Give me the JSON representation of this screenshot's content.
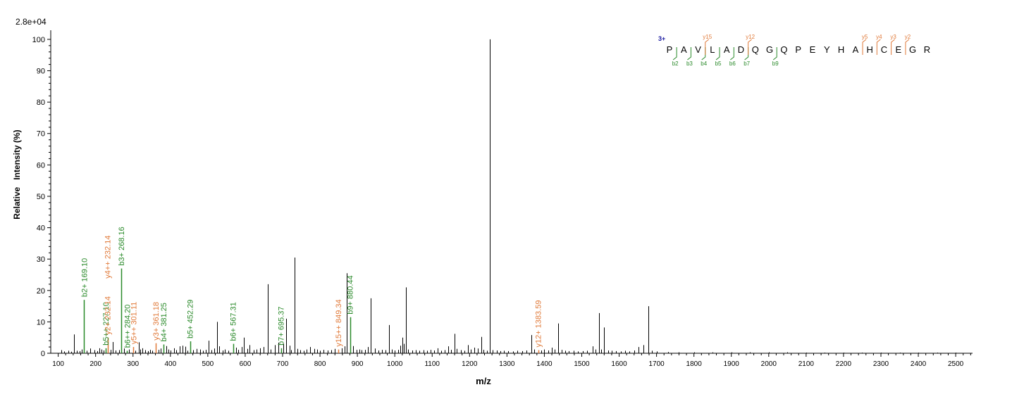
{
  "chart_data": {
    "type": "bar",
    "scale_label": "2.8e+04",
    "xlabel": "m/z",
    "ylabel": "Relative   Intensity (%)",
    "xlim": [
      80,
      2545
    ],
    "ylim": [
      0,
      102
    ],
    "x_ticks": [
      100,
      200,
      300,
      400,
      500,
      600,
      700,
      800,
      900,
      1000,
      1100,
      1200,
      1300,
      1400,
      1500,
      1600,
      1700,
      1800,
      1900,
      2000,
      2100,
      2200,
      2300,
      2400,
      2500
    ],
    "y_ticks": [
      0,
      10,
      20,
      30,
      40,
      50,
      60,
      70,
      80,
      90,
      100
    ],
    "colors": {
      "b_ion": "#2a8a2a",
      "y_ion": "#e07a3a",
      "unlabeled": "#000000",
      "charge": "#1a1aa0"
    },
    "peaks": [
      [
        108,
        1
      ],
      [
        115,
        0.6
      ],
      [
        127,
        0.8
      ],
      [
        134,
        0.5
      ],
      [
        143,
        6
      ],
      [
        150,
        0.8
      ],
      [
        158,
        0.7
      ],
      [
        163,
        1.2
      ],
      [
        169.1,
        17
      ],
      [
        176,
        0.8
      ],
      [
        185,
        1.5
      ],
      [
        196,
        1
      ],
      [
        205,
        0.7
      ],
      [
        210,
        1.6
      ],
      [
        215,
        1.2
      ],
      [
        222,
        0.9
      ],
      [
        227.1,
        1.6
      ],
      [
        232.14,
        5
      ],
      [
        240,
        1.1
      ],
      [
        246,
        3.6
      ],
      [
        254,
        0.9
      ],
      [
        262,
        1
      ],
      [
        268.16,
        27
      ],
      [
        276,
        1.5
      ],
      [
        284.2,
        0.8
      ],
      [
        290,
        1.2
      ],
      [
        301.11,
        2
      ],
      [
        307,
        0.8
      ],
      [
        315,
        3.5
      ],
      [
        320,
        1.2
      ],
      [
        325,
        1.6
      ],
      [
        333,
        1
      ],
      [
        340,
        0.7
      ],
      [
        346,
        1.1
      ],
      [
        352,
        0.8
      ],
      [
        361.18,
        3.2
      ],
      [
        368,
        1.1
      ],
      [
        374,
        1.5
      ],
      [
        381.25,
        2.8
      ],
      [
        390,
        2.3
      ],
      [
        394,
        1.2
      ],
      [
        400,
        0.9
      ],
      [
        410,
        1.6
      ],
      [
        416,
        1
      ],
      [
        425,
        2.2
      ],
      [
        432,
        2.4
      ],
      [
        440,
        2.1
      ],
      [
        446,
        0.8
      ],
      [
        452.29,
        3.8
      ],
      [
        460,
        1
      ],
      [
        470,
        1.4
      ],
      [
        480,
        1.2
      ],
      [
        488,
        0.8
      ],
      [
        495,
        1.1
      ],
      [
        502,
        4
      ],
      [
        510,
        1
      ],
      [
        518,
        1.5
      ],
      [
        524,
        10
      ],
      [
        530,
        2.2
      ],
      [
        540,
        0.9
      ],
      [
        546,
        1.2
      ],
      [
        554,
        0.8
      ],
      [
        567.31,
        3
      ],
      [
        575,
        1.8
      ],
      [
        582,
        1.1
      ],
      [
        590,
        2
      ],
      [
        597,
        5
      ],
      [
        605,
        1.4
      ],
      [
        612,
        2.6
      ],
      [
        622,
        1
      ],
      [
        630,
        1.2
      ],
      [
        640,
        1.6
      ],
      [
        650,
        2
      ],
      [
        660,
        22
      ],
      [
        668,
        1.2
      ],
      [
        680,
        2.6
      ],
      [
        688,
        3.4
      ],
      [
        695.37,
        1.6
      ],
      [
        702,
        3
      ],
      [
        710,
        11
      ],
      [
        718,
        2.4
      ],
      [
        722,
        1
      ],
      [
        732,
        30.5
      ],
      [
        740,
        1.4
      ],
      [
        748,
        1
      ],
      [
        756,
        0.8
      ],
      [
        764,
        1.2
      ],
      [
        774,
        2
      ],
      [
        784,
        1.4
      ],
      [
        792,
        1.2
      ],
      [
        800,
        0.8
      ],
      [
        810,
        1.1
      ],
      [
        820,
        0.9
      ],
      [
        830,
        1
      ],
      [
        840,
        1.4
      ],
      [
        849.34,
        1.2
      ],
      [
        858,
        1.6
      ],
      [
        866,
        2.2
      ],
      [
        872,
        25.5
      ],
      [
        880.44,
        11.5
      ],
      [
        888,
        2.3
      ],
      [
        897,
        1.1
      ],
      [
        905,
        1.2
      ],
      [
        912,
        1
      ],
      [
        920,
        1.1
      ],
      [
        928,
        2
      ],
      [
        936,
        17.5
      ],
      [
        946,
        1.5
      ],
      [
        956,
        0.9
      ],
      [
        966,
        1.1
      ],
      [
        976,
        1
      ],
      [
        984,
        9
      ],
      [
        992,
        1.2
      ],
      [
        1000,
        0.9
      ],
      [
        1010,
        1.1
      ],
      [
        1015,
        2.4
      ],
      [
        1020,
        5
      ],
      [
        1024,
        3
      ],
      [
        1029,
        21
      ],
      [
        1036,
        1.2
      ],
      [
        1046,
        0.9
      ],
      [
        1056,
        1
      ],
      [
        1066,
        0.8
      ],
      [
        1076,
        1
      ],
      [
        1086,
        0.8
      ],
      [
        1096,
        1.1
      ],
      [
        1106,
        0.9
      ],
      [
        1114,
        1.6
      ],
      [
        1124,
        0.8
      ],
      [
        1134,
        1
      ],
      [
        1142,
        2.2
      ],
      [
        1150,
        1.1
      ],
      [
        1159,
        6.2
      ],
      [
        1166,
        1.4
      ],
      [
        1176,
        1
      ],
      [
        1186,
        0.8
      ],
      [
        1196,
        2.6
      ],
      [
        1204,
        1.2
      ],
      [
        1212,
        1.8
      ],
      [
        1222,
        1.5
      ],
      [
        1231,
        5.2
      ],
      [
        1238,
        1.1
      ],
      [
        1246,
        0.8
      ],
      [
        1254,
        100
      ],
      [
        1262,
        1
      ],
      [
        1272,
        0.9
      ],
      [
        1282,
        0.7
      ],
      [
        1292,
        0.8
      ],
      [
        1304,
        0.7
      ],
      [
        1316,
        0.6
      ],
      [
        1328,
        0.8
      ],
      [
        1340,
        0.7
      ],
      [
        1352,
        0.9
      ],
      [
        1365,
        5.8
      ],
      [
        1373,
        1.2
      ],
      [
        1383.59,
        1
      ],
      [
        1392,
        0.9
      ],
      [
        1400,
        1.2
      ],
      [
        1410,
        0.9
      ],
      [
        1420,
        1.8
      ],
      [
        1428,
        1.2
      ],
      [
        1437,
        9.5
      ],
      [
        1446,
        1.1
      ],
      [
        1456,
        0.8
      ],
      [
        1466,
        0.7
      ],
      [
        1478,
        0.8
      ],
      [
        1490,
        0.6
      ],
      [
        1502,
        0.7
      ],
      [
        1514,
        0.8
      ],
      [
        1530,
        2.2
      ],
      [
        1537,
        1.2
      ],
      [
        1546,
        12.8
      ],
      [
        1552,
        1.2
      ],
      [
        1560,
        8.2
      ],
      [
        1570,
        0.9
      ],
      [
        1580,
        0.8
      ],
      [
        1592,
        0.7
      ],
      [
        1604,
        0.6
      ],
      [
        1616,
        0.8
      ],
      [
        1628,
        0.6
      ],
      [
        1640,
        0.9
      ],
      [
        1652,
        2
      ],
      [
        1664,
        2.6
      ],
      [
        1678,
        15
      ],
      [
        1688,
        0.8
      ],
      [
        1700,
        0.6
      ],
      [
        1730,
        0.4
      ],
      [
        1760,
        0.3
      ],
      [
        1800,
        0.3
      ],
      [
        1850,
        0.3
      ],
      [
        1900,
        0.3
      ],
      [
        1950,
        0.3
      ],
      [
        2000,
        0.3
      ],
      [
        2050,
        0.3
      ],
      [
        2100,
        0.2
      ],
      [
        2150,
        0.2
      ],
      [
        2200,
        0.2
      ],
      [
        2250,
        0.2
      ],
      [
        2300,
        0.2
      ],
      [
        2350,
        0.2
      ],
      [
        2400,
        0.2
      ],
      [
        2450,
        0.2
      ],
      [
        2500,
        0.2
      ]
    ],
    "annotations": [
      {
        "mz": 169.1,
        "label": "b2+ 169.10",
        "ion": "b",
        "yrel": 17,
        "lane": 0
      },
      {
        "mz": 227.1,
        "label": "b5++ 227.10",
        "ion": "b",
        "yrel": 1.6,
        "lane": 0
      },
      {
        "mz": 232.14,
        "label": "y2+ 232.14",
        "ion": "y",
        "yrel": 5,
        "lane": 0
      },
      {
        "mz": 232.14,
        "label": "y4++ 232.14",
        "ion": "y",
        "yrel": 5,
        "lane": 1
      },
      {
        "mz": 268.16,
        "label": "b3+ 268.16",
        "ion": "b",
        "yrel": 27,
        "lane": 0
      },
      {
        "mz": 284.2,
        "label": "b6++ 284.20",
        "ion": "b",
        "yrel": 0.8,
        "lane": 0
      },
      {
        "mz": 301.11,
        "label": "y5++ 301.11",
        "ion": "y",
        "yrel": 2,
        "lane": 0
      },
      {
        "mz": 361.18,
        "label": "y3+ 361.18",
        "ion": "y",
        "yrel": 3.2,
        "lane": 0
      },
      {
        "mz": 381.25,
        "label": "b4+ 381.25",
        "ion": "b",
        "yrel": 2.8,
        "lane": 0
      },
      {
        "mz": 452.29,
        "label": "b5+ 452.29",
        "ion": "b",
        "yrel": 3.8,
        "lane": 0
      },
      {
        "mz": 567.31,
        "label": "b6+ 567.31",
        "ion": "b",
        "yrel": 3,
        "lane": 0
      },
      {
        "mz": 695.37,
        "label": "b7+ 695.37",
        "ion": "b",
        "yrel": 1.6,
        "lane": 0
      },
      {
        "mz": 849.34,
        "label": "y15++ 849.34",
        "ion": "y",
        "yrel": 1.2,
        "lane": 0
      },
      {
        "mz": 880.44,
        "label": "b9+ 880.44",
        "ion": "b",
        "yrel": 11.5,
        "lane": 0
      },
      {
        "mz": 1383.59,
        "label": "y12+ 1383.59",
        "ion": "y",
        "yrel": 1,
        "lane": 0
      }
    ],
    "sequence": {
      "charge": "3+",
      "residues": [
        "P",
        "A",
        "V",
        "L",
        "A",
        "D",
        "Q",
        "G",
        "Q",
        "P",
        "E",
        "Y",
        "H",
        "A",
        "H",
        "C",
        "E",
        "G",
        "R"
      ],
      "b_ions": [
        {
          "after": 1,
          "label": "b2"
        },
        {
          "after": 2,
          "label": "b3"
        },
        {
          "after": 3,
          "label": "b4"
        },
        {
          "after": 4,
          "label": "b5"
        },
        {
          "after": 5,
          "label": "b6"
        },
        {
          "after": 6,
          "label": "b7"
        },
        {
          "after": 8,
          "label": "b9"
        }
      ],
      "y_ions": [
        {
          "after": 3,
          "label": "y15"
        },
        {
          "after": 6,
          "label": "y12"
        },
        {
          "after": 14,
          "label": "y5"
        },
        {
          "after": 15,
          "label": "y4"
        },
        {
          "after": 16,
          "label": "y3"
        },
        {
          "after": 17,
          "label": "y2"
        }
      ]
    }
  }
}
